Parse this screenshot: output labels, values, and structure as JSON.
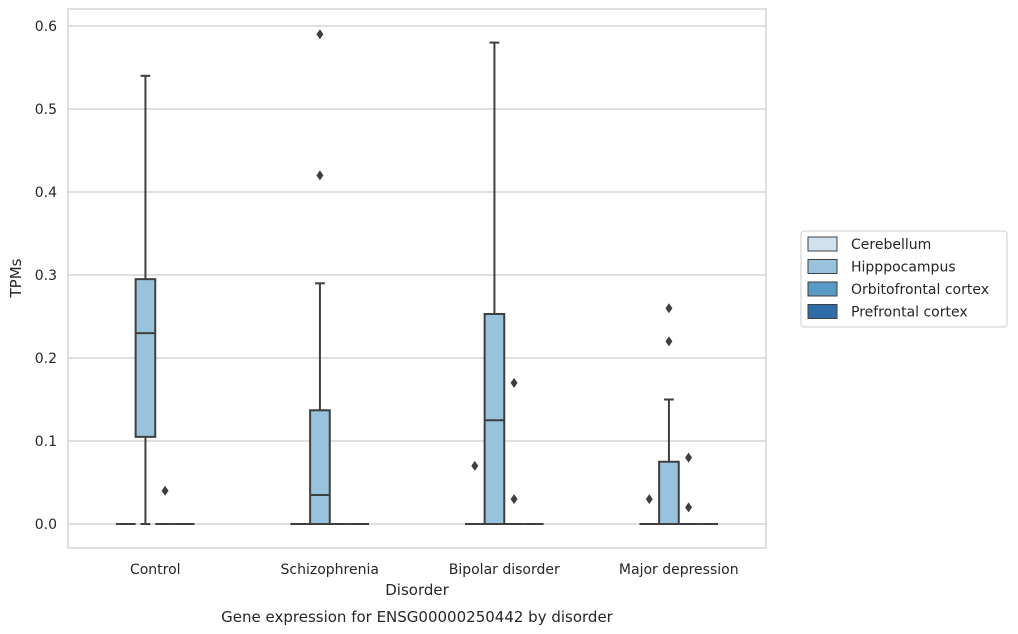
{
  "chart_data": {
    "type": "boxplot",
    "title": "Gene expression for ENSG00000250442 by disorder",
    "xlabel": "Disorder",
    "ylabel": "TPMs",
    "ylim": [
      -0.028,
      0.62
    ],
    "yticks": [
      0.0,
      0.1,
      0.2,
      0.3,
      0.4,
      0.5,
      0.6
    ],
    "ytick_labels": [
      "0.0",
      "0.1",
      "0.2",
      "0.3",
      "0.4",
      "0.5",
      "0.6"
    ],
    "grid": "horizontal",
    "legend_position": "right",
    "categories": [
      "Control",
      "Schizophrenia",
      "Bipolar disorder",
      "Major depression"
    ],
    "series": [
      {
        "name": "Cerebellum",
        "color": "#d1e1ee",
        "boxes": [
          {
            "min": 0,
            "q1": 0,
            "median": 0,
            "q3": 0,
            "max": 0,
            "outliers": []
          },
          {
            "min": 0,
            "q1": 0,
            "median": 0,
            "q3": 0,
            "max": 0,
            "outliers": []
          },
          {
            "min": 0,
            "q1": 0,
            "median": 0,
            "q3": 0,
            "max": 0,
            "outliers": []
          },
          {
            "min": 0,
            "q1": 0,
            "median": 0,
            "q3": 0,
            "max": 0,
            "outliers": []
          }
        ]
      },
      {
        "name": "Hipppocampus",
        "color": "#99c3dd",
        "boxes": [
          {
            "min": 0.0,
            "q1": 0.105,
            "median": 0.23,
            "q3": 0.295,
            "max": 0.54,
            "outliers": []
          },
          {
            "min": 0.0,
            "q1": 0.0,
            "median": 0.035,
            "q3": 0.137,
            "max": 0.29,
            "outliers": [
              0.42,
              0.59
            ]
          },
          {
            "min": 0.0,
            "q1": 0.0,
            "median": 0.125,
            "q3": 0.253,
            "max": 0.58,
            "outliers": []
          },
          {
            "min": 0.0,
            "q1": 0.0,
            "median": 0.0,
            "q3": 0.075,
            "max": 0.15,
            "outliers": [
              0.22,
              0.26
            ]
          }
        ]
      },
      {
        "name": "Orbitofrontal cortex",
        "color": "#5a9ac6",
        "boxes": [
          {
            "min": 0,
            "q1": 0,
            "median": 0,
            "q3": 0,
            "max": 0,
            "outliers": [
              0.04
            ]
          },
          {
            "min": 0,
            "q1": 0,
            "median": 0,
            "q3": 0,
            "max": 0,
            "outliers": []
          },
          {
            "min": 0,
            "q1": 0,
            "median": 0,
            "q3": 0,
            "max": 0,
            "outliers": [
              0.03,
              0.17
            ]
          },
          {
            "min": 0,
            "q1": 0,
            "median": 0,
            "q3": 0,
            "max": 0,
            "outliers": [
              0.02,
              0.08
            ]
          }
        ]
      },
      {
        "name": "Prefrontal cortex",
        "color": "#2d6ea9",
        "boxes": [
          {
            "min": 0,
            "q1": 0,
            "median": 0,
            "q3": 0,
            "max": 0,
            "outliers": []
          },
          {
            "min": 0,
            "q1": 0,
            "median": 0,
            "q3": 0,
            "max": 0,
            "outliers": []
          },
          {
            "min": 0,
            "q1": 0,
            "median": 0,
            "q3": 0,
            "max": 0,
            "outliers": []
          },
          {
            "min": 0,
            "q1": 0,
            "median": 0,
            "q3": 0,
            "max": 0,
            "outliers": []
          }
        ]
      }
    ],
    "extra_outliers": [
      {
        "category": "Bipolar disorder",
        "series": "Cerebellum",
        "values": [
          0.07
        ]
      },
      {
        "category": "Major depression",
        "series": "Cerebellum",
        "values": [
          0.03
        ]
      }
    ]
  }
}
